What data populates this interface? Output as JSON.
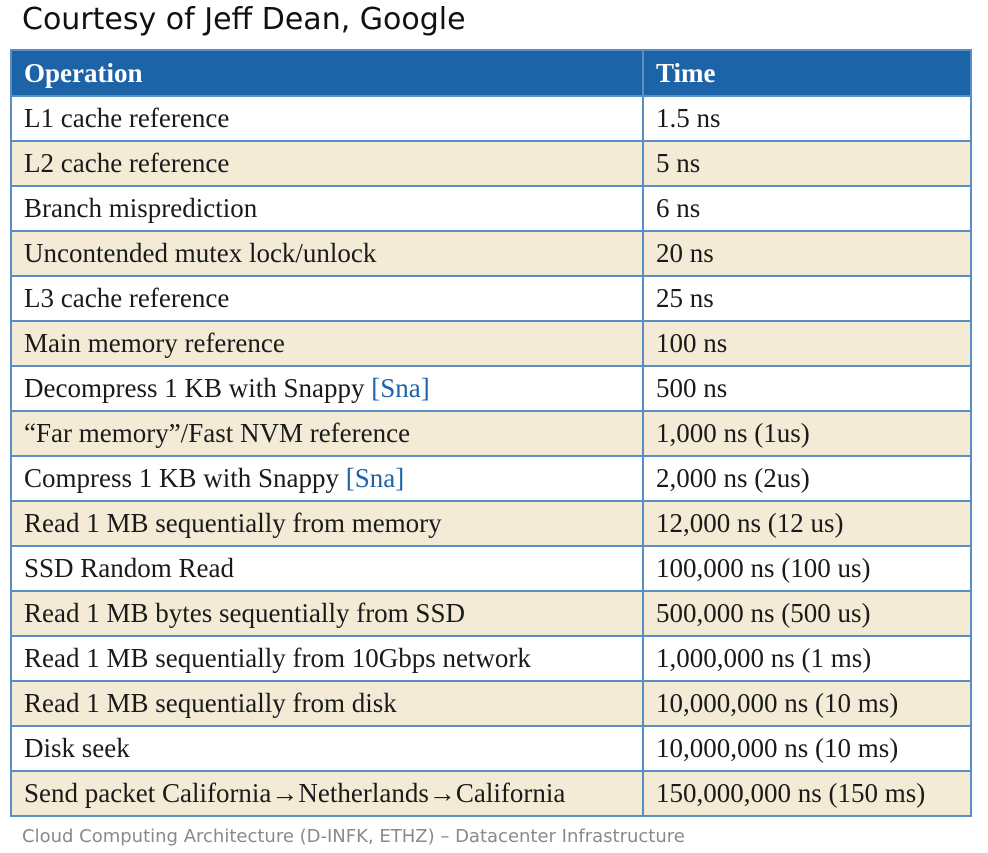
{
  "title": "Courtesy of Jeff Dean, Google",
  "footer": "Cloud Computing Architecture (D-INFK, ETHZ) – Datacenter Infrastructure",
  "colors": {
    "header_bg": "#1d63a8",
    "row_alt_bg": "#f3ebd5",
    "border": "#5a8fc6",
    "citation": "#1d63a8"
  },
  "table": {
    "headers": {
      "operation": "Operation",
      "time": "Time"
    },
    "rows": [
      {
        "operation": "L1 cache reference",
        "time": "1.5 ns"
      },
      {
        "operation": "L2 cache reference",
        "time": "5 ns"
      },
      {
        "operation": "Branch misprediction",
        "time": "6 ns"
      },
      {
        "operation": "Uncontended mutex lock/unlock",
        "time": "20 ns"
      },
      {
        "operation": "L3 cache reference",
        "time": "25 ns"
      },
      {
        "operation": "Main memory reference",
        "time": "100 ns"
      },
      {
        "operation": "Decompress 1 KB with Snappy",
        "citation": "[Sna]",
        "time": "500 ns"
      },
      {
        "operation": "“Far memory”/Fast NVM reference",
        "time": "1,000 ns (1us)"
      },
      {
        "operation": "Compress 1 KB with Snappy",
        "citation": "[Sna]",
        "time": "2,000 ns (2us)"
      },
      {
        "operation": "Read 1 MB sequentially from memory",
        "time": "12,000 ns (12 us)"
      },
      {
        "operation": "SSD Random Read",
        "time": "100,000 ns (100 us)"
      },
      {
        "operation": "Read 1 MB bytes sequentially from SSD",
        "time": "500,000 ns (500 us)"
      },
      {
        "operation": "Read 1 MB sequentially from 10Gbps network",
        "time": "1,000,000 ns (1 ms)"
      },
      {
        "operation": "Read 1 MB sequentially from disk",
        "time": "10,000,000 ns (10 ms)"
      },
      {
        "operation": "Disk seek",
        "time": "10,000,000 ns (10 ms)"
      },
      {
        "operation": "Send packet California→Netherlands→California",
        "time": "150,000,000 ns (150 ms)"
      }
    ]
  }
}
